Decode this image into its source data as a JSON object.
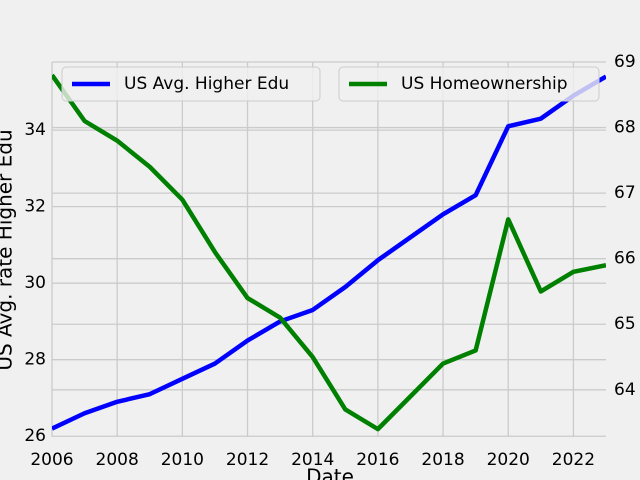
{
  "chart_data": {
    "type": "line",
    "x": [
      2006,
      2007,
      2008,
      2009,
      2010,
      2011,
      2012,
      2013,
      2014,
      2015,
      2016,
      2017,
      2018,
      2019,
      2020,
      2021,
      2022,
      2023
    ],
    "xlabel": "Date",
    "ylabel": "US Avg. rate Higher Edu",
    "xlim": [
      2006,
      2023
    ],
    "xticks": [
      2006,
      2008,
      2010,
      2012,
      2014,
      2016,
      2018,
      2020,
      2022
    ],
    "ylim": [
      25.98,
      35.78
    ],
    "yticks": [
      26,
      28,
      30,
      32,
      34
    ],
    "y2lim": [
      63.28,
      69.0
    ],
    "y2ticks": [
      64,
      65,
      66,
      67,
      68,
      69
    ],
    "grid": true,
    "legend": "upper center",
    "series": [
      {
        "name": "US Avg. Higher Edu",
        "color": "#0000ff",
        "values": [
          26.2,
          26.6,
          26.9,
          27.1,
          27.5,
          27.9,
          28.5,
          29.0,
          29.3,
          29.9,
          30.6,
          31.2,
          31.8,
          32.3,
          34.1,
          34.3,
          34.9,
          35.4
        ]
      },
      {
        "name": "US Homeownership",
        "color": "#008000",
        "axis": "y2",
        "values": [
          68.8,
          68.1,
          67.8,
          67.4,
          66.9,
          66.1,
          65.4,
          65.1,
          64.5,
          63.7,
          63.4,
          63.9,
          64.4,
          64.6,
          66.6,
          65.5,
          65.8,
          65.9
        ]
      }
    ]
  }
}
